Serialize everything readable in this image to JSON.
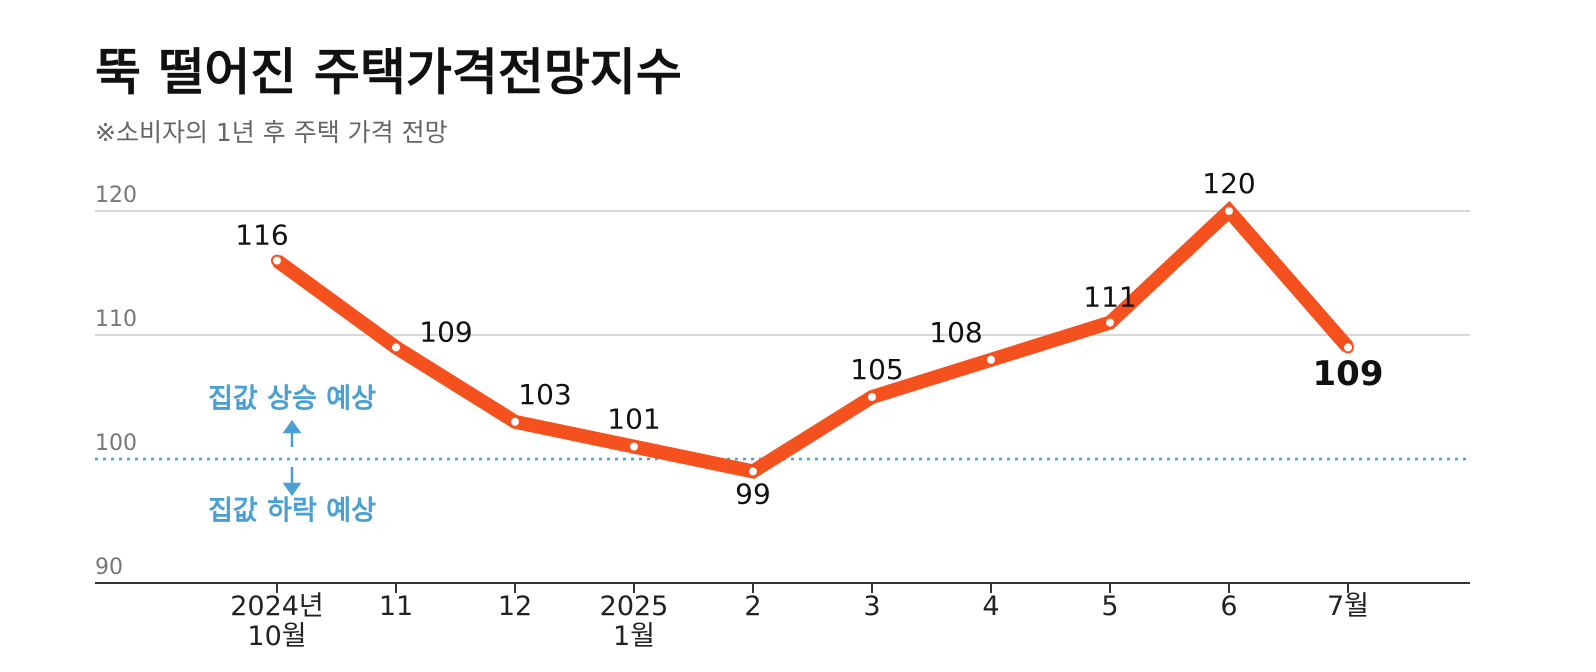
{
  "chart_data": {
    "type": "line",
    "title": "뚝 떨어진 주택가격전망지수",
    "subtitle": "※소비자의 1년 후 주택 가격 전망",
    "categories": [
      "2024년\n10월",
      "11",
      "12",
      "2025\n1월",
      "2",
      "3",
      "4",
      "5",
      "6",
      "7월"
    ],
    "series": [
      {
        "name": "주택가격전망지수",
        "color": "#f4511e",
        "values": [
          116,
          109,
          103,
          101,
          99,
          105,
          108,
          111,
          120,
          109
        ]
      }
    ],
    "ylim": [
      90,
      120
    ],
    "yticks": [
      90,
      100,
      110,
      120
    ],
    "grid": true,
    "reference_line": {
      "value": 100,
      "color": "#4a9fd4"
    },
    "annotations": [
      "집값 상승 예상",
      "집값 하락 예상"
    ]
  }
}
